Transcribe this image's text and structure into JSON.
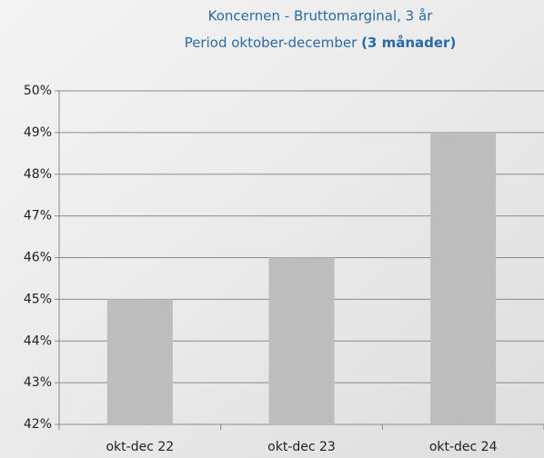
{
  "chart_data": {
    "type": "bar",
    "title": "Koncernen - Bruttomarginal, 3 år",
    "subtitle": "Period oktober-december",
    "subtitle_bold": "(3 månader)",
    "categories": [
      "okt-dec 22",
      "okt-dec 23",
      "okt-dec 24"
    ],
    "values": [
      45,
      46,
      49
    ],
    "color": "#bdbdbd",
    "ylim": [
      42,
      50
    ],
    "yticks": [
      {
        "value": 42,
        "label": "42%"
      },
      {
        "value": 43,
        "label": "43%"
      },
      {
        "value": 44,
        "label": "44%"
      },
      {
        "value": 45,
        "label": "45%"
      },
      {
        "value": 46,
        "label": "46%"
      },
      {
        "value": 47,
        "label": "47%"
      },
      {
        "value": 48,
        "label": "48%"
      },
      {
        "value": 49,
        "label": "49%"
      },
      {
        "value": 50,
        "label": "50%"
      }
    ],
    "grid": true
  }
}
